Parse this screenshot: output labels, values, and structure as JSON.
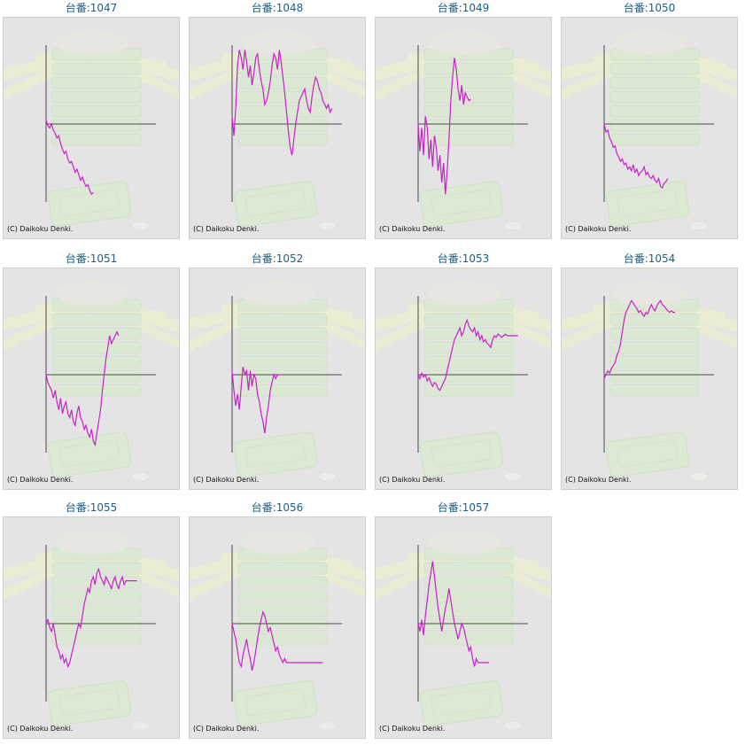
{
  "copyright": "(C) Daikoku Denki.",
  "colors": {
    "line": "#cc1fcc",
    "axis": "#4a4a4a",
    "background": "#e4e4e4",
    "title": "#1a5f8a"
  },
  "chart_data": [
    {
      "type": "line",
      "title": "台番:1047",
      "x": [
        0,
        1,
        2,
        3,
        4,
        5,
        6,
        7,
        8,
        9,
        10,
        11,
        12,
        13,
        14,
        15,
        16,
        17,
        18,
        19,
        20,
        21,
        22,
        23,
        24,
        25,
        26
      ],
      "values": [
        0.05,
        -0.02,
        -0.05,
        0.0,
        -0.08,
        -0.12,
        -0.18,
        -0.15,
        -0.25,
        -0.32,
        -0.38,
        -0.35,
        -0.45,
        -0.5,
        -0.48,
        -0.55,
        -0.62,
        -0.58,
        -0.65,
        -0.72,
        -0.68,
        -0.75,
        -0.8,
        -0.78,
        -0.85,
        -0.9,
        -0.88
      ]
    },
    {
      "type": "line",
      "title": "台番:1048",
      "x": [
        0,
        1,
        2,
        3,
        4,
        5,
        6,
        7,
        8,
        9,
        10,
        11,
        12,
        13,
        14,
        15,
        16,
        17,
        18,
        19,
        20,
        21,
        22,
        23,
        24,
        25,
        26,
        27,
        28,
        29,
        30,
        31,
        32,
        33,
        34,
        35,
        36,
        37,
        38,
        39,
        40,
        41,
        42,
        43,
        44,
        45,
        46,
        47,
        48,
        49,
        50,
        51,
        52,
        53,
        54,
        55
      ],
      "values": [
        0.1,
        -0.15,
        0.2,
        0.75,
        0.95,
        0.85,
        0.7,
        0.95,
        0.8,
        0.6,
        0.75,
        0.5,
        0.65,
        0.85,
        0.9,
        0.7,
        0.55,
        0.45,
        0.25,
        0.3,
        0.4,
        0.55,
        0.75,
        0.9,
        0.85,
        0.7,
        0.95,
        0.8,
        0.6,
        0.4,
        0.15,
        -0.1,
        -0.3,
        -0.4,
        -0.2,
        0.0,
        0.15,
        0.3,
        0.35,
        0.4,
        0.45,
        0.3,
        0.2,
        0.15,
        0.35,
        0.5,
        0.6,
        0.55,
        0.45,
        0.4,
        0.3,
        0.25,
        0.2,
        0.25,
        0.15,
        0.2
      ]
    },
    {
      "type": "line",
      "title": "台番:1049",
      "x": [
        0,
        1,
        2,
        3,
        4,
        5,
        6,
        7,
        8,
        9,
        10,
        11,
        12,
        13,
        14,
        15,
        16,
        17,
        18,
        19,
        20,
        21,
        22,
        23,
        24,
        25,
        26,
        27,
        28,
        29
      ],
      "values": [
        0.0,
        -0.35,
        -0.05,
        -0.4,
        0.1,
        -0.05,
        -0.45,
        -0.2,
        -0.55,
        -0.15,
        -0.3,
        -0.6,
        -0.4,
        -0.75,
        -0.5,
        -0.9,
        -0.6,
        -0.2,
        0.3,
        0.6,
        0.85,
        0.7,
        0.45,
        0.3,
        0.5,
        0.25,
        0.4,
        0.35,
        0.3,
        0.32
      ]
    },
    {
      "type": "line",
      "title": "台番:1050",
      "x": [
        0,
        1,
        2,
        3,
        4,
        5,
        6,
        7,
        8,
        9,
        10,
        11,
        12,
        13,
        14,
        15,
        16,
        17,
        18,
        19,
        20,
        21,
        22,
        23,
        24,
        25,
        26,
        27,
        28,
        29,
        30,
        31,
        32,
        33,
        34,
        35
      ],
      "values": [
        0.0,
        -0.1,
        -0.08,
        -0.18,
        -0.22,
        -0.3,
        -0.28,
        -0.38,
        -0.42,
        -0.48,
        -0.45,
        -0.52,
        -0.5,
        -0.58,
        -0.55,
        -0.6,
        -0.52,
        -0.62,
        -0.58,
        -0.66,
        -0.62,
        -0.6,
        -0.55,
        -0.65,
        -0.62,
        -0.68,
        -0.7,
        -0.66,
        -0.72,
        -0.75,
        -0.7,
        -0.8,
        -0.82,
        -0.76,
        -0.74,
        -0.7
      ]
    },
    {
      "type": "line",
      "title": "台番:1051",
      "x": [
        0,
        1,
        2,
        3,
        4,
        5,
        6,
        7,
        8,
        9,
        10,
        11,
        12,
        13,
        14,
        15,
        16,
        17,
        18,
        19,
        20,
        21,
        22,
        23,
        24,
        25,
        26,
        27,
        28,
        29,
        30,
        31,
        32,
        33,
        34,
        35,
        36,
        37,
        38,
        39,
        40
      ],
      "values": [
        0.0,
        -0.1,
        -0.15,
        -0.2,
        -0.3,
        -0.2,
        -0.35,
        -0.45,
        -0.3,
        -0.5,
        -0.4,
        -0.35,
        -0.5,
        -0.55,
        -0.45,
        -0.6,
        -0.65,
        -0.5,
        -0.4,
        -0.55,
        -0.6,
        -0.7,
        -0.65,
        -0.75,
        -0.8,
        -0.7,
        -0.85,
        -0.9,
        -0.75,
        -0.6,
        -0.45,
        -0.2,
        0.0,
        0.2,
        0.35,
        0.5,
        0.4,
        0.45,
        0.5,
        0.55,
        0.5
      ]
    },
    {
      "type": "line",
      "title": "台番:1052",
      "x": [
        0,
        1,
        2,
        3,
        4,
        5,
        6,
        7,
        8,
        9,
        10,
        11,
        12,
        13,
        14,
        15,
        16,
        17,
        18,
        19,
        20,
        21,
        22,
        23,
        24,
        25,
        26,
        27,
        28
      ],
      "values": [
        0.05,
        -0.2,
        -0.4,
        -0.25,
        -0.45,
        -0.15,
        0.1,
        0.0,
        0.05,
        -0.2,
        0.05,
        -0.15,
        0.0,
        -0.05,
        -0.25,
        -0.35,
        -0.5,
        -0.6,
        -0.75,
        -0.55,
        -0.4,
        -0.2,
        -0.1,
        0.0,
        -0.05,
        0.0,
        0.0,
        0.0,
        0.0
      ]
    },
    {
      "type": "line",
      "title": "台番:1053",
      "x": [
        0,
        1,
        2,
        3,
        4,
        5,
        6,
        7,
        8,
        9,
        10,
        11,
        12,
        13,
        14,
        15,
        16,
        17,
        18,
        19,
        20,
        21,
        22,
        23,
        24,
        25,
        26,
        27,
        28,
        29,
        30,
        31,
        32,
        33,
        34,
        35,
        36,
        37,
        38,
        39,
        40,
        41,
        42,
        43,
        44,
        45,
        46,
        47,
        48,
        49,
        50,
        51,
        52,
        53,
        54,
        55
      ],
      "values": [
        0.0,
        -0.05,
        0.02,
        -0.03,
        0.0,
        -0.08,
        -0.04,
        -0.1,
        -0.15,
        -0.1,
        -0.12,
        -0.18,
        -0.2,
        -0.15,
        -0.1,
        -0.05,
        0.05,
        0.15,
        0.25,
        0.35,
        0.45,
        0.5,
        0.55,
        0.6,
        0.5,
        0.55,
        0.65,
        0.7,
        0.62,
        0.58,
        0.55,
        0.6,
        0.5,
        0.55,
        0.45,
        0.5,
        0.42,
        0.45,
        0.4,
        0.38,
        0.35,
        0.45,
        0.5,
        0.48,
        0.52,
        0.5,
        0.48,
        0.5,
        0.52,
        0.5,
        0.5,
        0.5,
        0.5,
        0.5,
        0.5,
        0.5
      ]
    },
    {
      "type": "line",
      "title": "台番:1054",
      "x": [
        0,
        1,
        2,
        3,
        4,
        5,
        6,
        7,
        8,
        9,
        10,
        11,
        12,
        13,
        14,
        15,
        16,
        17,
        18,
        19,
        20,
        21,
        22,
        23,
        24,
        25,
        26,
        27,
        28,
        29,
        30,
        31,
        32,
        33,
        34,
        35,
        36,
        37,
        38,
        39
      ],
      "values": [
        -0.05,
        0.0,
        0.05,
        0.02,
        0.08,
        0.12,
        0.15,
        0.25,
        0.3,
        0.4,
        0.55,
        0.7,
        0.8,
        0.85,
        0.9,
        0.95,
        0.92,
        0.88,
        0.85,
        0.8,
        0.82,
        0.78,
        0.75,
        0.8,
        0.78,
        0.85,
        0.9,
        0.85,
        0.82,
        0.88,
        0.92,
        0.95,
        0.9,
        0.88,
        0.85,
        0.82,
        0.8,
        0.82,
        0.8,
        0.8
      ]
    },
    {
      "type": "line",
      "title": "台番:1055",
      "x": [
        0,
        1,
        2,
        3,
        4,
        5,
        6,
        7,
        8,
        9,
        10,
        11,
        12,
        13,
        14,
        15,
        16,
        17,
        18,
        19,
        20,
        21,
        22,
        23,
        24,
        25,
        26,
        27,
        28,
        29,
        30,
        31,
        32,
        33,
        34,
        35,
        36,
        37,
        38,
        39,
        40,
        41,
        42,
        43,
        44,
        45,
        46,
        47,
        48,
        49,
        50
      ],
      "values": [
        0.0,
        0.05,
        -0.05,
        -0.1,
        0.0,
        -0.15,
        -0.3,
        -0.35,
        -0.45,
        -0.4,
        -0.5,
        -0.45,
        -0.55,
        -0.5,
        -0.4,
        -0.3,
        -0.2,
        -0.1,
        0.0,
        -0.05,
        0.1,
        0.25,
        0.35,
        0.45,
        0.4,
        0.55,
        0.6,
        0.5,
        0.65,
        0.7,
        0.6,
        0.55,
        0.5,
        0.6,
        0.55,
        0.5,
        0.45,
        0.55,
        0.6,
        0.5,
        0.45,
        0.55,
        0.6,
        0.5,
        0.55,
        0.55,
        0.55,
        0.55,
        0.55,
        0.55,
        0.55
      ]
    },
    {
      "type": "line",
      "title": "台番:1056",
      "x": [
        0,
        1,
        2,
        3,
        4,
        5,
        6,
        7,
        8,
        9,
        10,
        11,
        12,
        13,
        14,
        15,
        16,
        17,
        18,
        19,
        20,
        21,
        22,
        23,
        24,
        25,
        26,
        27,
        28,
        29,
        30,
        31,
        32,
        33,
        34,
        35,
        36,
        37,
        38,
        39,
        40,
        41,
        42,
        43,
        44,
        45,
        46,
        47,
        48,
        49,
        50
      ],
      "values": [
        0.0,
        -0.1,
        -0.2,
        -0.35,
        -0.5,
        -0.55,
        -0.4,
        -0.3,
        -0.2,
        -0.35,
        -0.45,
        -0.6,
        -0.5,
        -0.35,
        -0.2,
        -0.05,
        0.05,
        0.15,
        0.1,
        0.0,
        -0.1,
        -0.05,
        -0.15,
        -0.25,
        -0.35,
        -0.3,
        -0.4,
        -0.45,
        -0.5,
        -0.45,
        -0.5,
        -0.5,
        -0.5,
        -0.5,
        -0.5,
        -0.5,
        -0.5,
        -0.5,
        -0.5,
        -0.5,
        -0.5,
        -0.5,
        -0.5,
        -0.5,
        -0.5,
        -0.5,
        -0.5,
        -0.5,
        -0.5,
        -0.5,
        -0.5
      ]
    },
    {
      "type": "line",
      "title": "台番:1057",
      "x": [
        0,
        1,
        2,
        3,
        4,
        5,
        6,
        7,
        8,
        9,
        10,
        11,
        12,
        13,
        14,
        15,
        16,
        17,
        18,
        19,
        20,
        21,
        22,
        23,
        24,
        25,
        26,
        27,
        28,
        29,
        30,
        31,
        32,
        33,
        34,
        35,
        36,
        37,
        38,
        39
      ],
      "values": [
        0.0,
        -0.1,
        0.05,
        -0.15,
        0.1,
        0.3,
        0.5,
        0.65,
        0.8,
        0.6,
        0.4,
        0.2,
        0.05,
        -0.1,
        0.05,
        0.2,
        0.3,
        0.45,
        0.3,
        0.15,
        0.0,
        -0.1,
        -0.2,
        -0.1,
        0.0,
        -0.05,
        -0.15,
        -0.25,
        -0.35,
        -0.3,
        -0.45,
        -0.55,
        -0.45,
        -0.5,
        -0.5,
        -0.5,
        -0.5,
        -0.5,
        -0.5,
        -0.5
      ]
    }
  ]
}
